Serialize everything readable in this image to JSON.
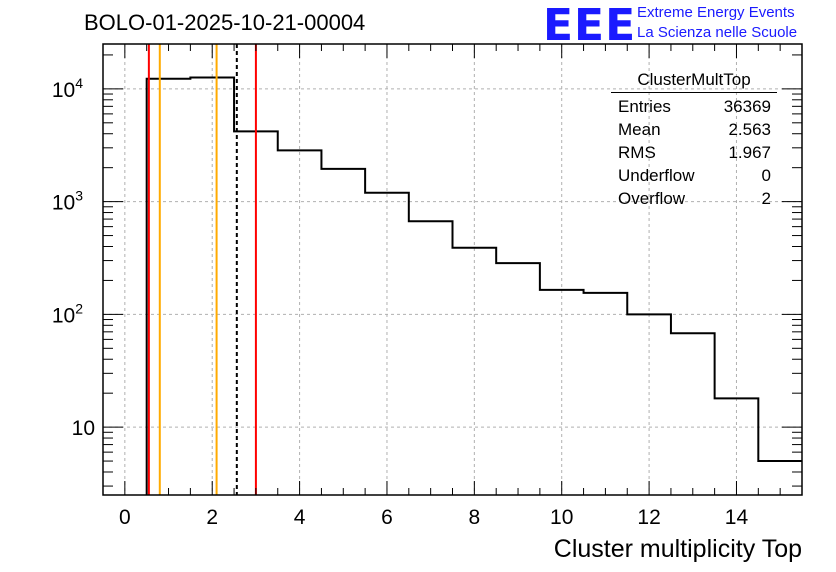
{
  "title": "BOLO-01-2025-10-21-00004",
  "logo": {
    "mark": "EEE",
    "line1": "Extreme Energy Events",
    "line2": "La Scienza nelle Scuole",
    "color": "#1a1aff"
  },
  "stats": {
    "name": "ClusterMultTop",
    "rows": [
      {
        "label": "Entries",
        "value": "36369"
      },
      {
        "label": "Mean",
        "value": "2.563"
      },
      {
        "label": "RMS",
        "value": "1.967"
      },
      {
        "label": "Underflow",
        "value": "0"
      },
      {
        "label": "Overflow",
        "value": "2"
      }
    ]
  },
  "chart_data": {
    "type": "histogram",
    "xlabel": "Cluster multiplicity Top",
    "ylabel": "",
    "xlim": [
      -0.5,
      15.5
    ],
    "ylim": [
      2.5,
      25000
    ],
    "yscale": "log",
    "grid": true,
    "x_ticks": [
      0,
      2,
      4,
      6,
      8,
      10,
      12,
      14
    ],
    "y_ticks": [
      {
        "value": 10,
        "base": "10",
        "exp": ""
      },
      {
        "value": 100,
        "base": "10",
        "exp": "2"
      },
      {
        "value": 1000,
        "base": "10",
        "exp": "3"
      },
      {
        "value": 10000,
        "base": "10",
        "exp": "4"
      }
    ],
    "bins": [
      {
        "x": 0.5,
        "x2": 1.5,
        "count": 12300
      },
      {
        "x": 1.5,
        "x2": 2.5,
        "count": 12600
      },
      {
        "x": 2.5,
        "x2": 3.5,
        "count": 4200
      },
      {
        "x": 3.5,
        "x2": 4.5,
        "count": 2850
      },
      {
        "x": 4.5,
        "x2": 5.5,
        "count": 1950
      },
      {
        "x": 5.5,
        "x2": 6.5,
        "count": 1200
      },
      {
        "x": 6.5,
        "x2": 7.5,
        "count": 670
      },
      {
        "x": 7.5,
        "x2": 8.5,
        "count": 390
      },
      {
        "x": 8.5,
        "x2": 9.5,
        "count": 285
      },
      {
        "x": 9.5,
        "x2": 10.5,
        "count": 165
      },
      {
        "x": 10.5,
        "x2": 11.5,
        "count": 155
      },
      {
        "x": 11.5,
        "x2": 12.5,
        "count": 100
      },
      {
        "x": 12.5,
        "x2": 13.5,
        "count": 68
      },
      {
        "x": 13.5,
        "x2": 14.5,
        "count": 18
      },
      {
        "x": 14.5,
        "x2": 15.5,
        "count": 5
      }
    ],
    "vertical_lines": [
      {
        "name": "red-line-low",
        "x": 0.55,
        "color": "#ff0000",
        "dashed": false
      },
      {
        "name": "orange-line-low",
        "x": 0.8,
        "color": "#ffaa00",
        "dashed": false
      },
      {
        "name": "orange-line-high",
        "x": 2.1,
        "color": "#ffaa00",
        "dashed": false
      },
      {
        "name": "mean-dashed-line",
        "x": 2.563,
        "color": "#000000",
        "dashed": true
      },
      {
        "name": "red-line-high",
        "x": 3.0,
        "color": "#ff0000",
        "dashed": false
      }
    ]
  }
}
